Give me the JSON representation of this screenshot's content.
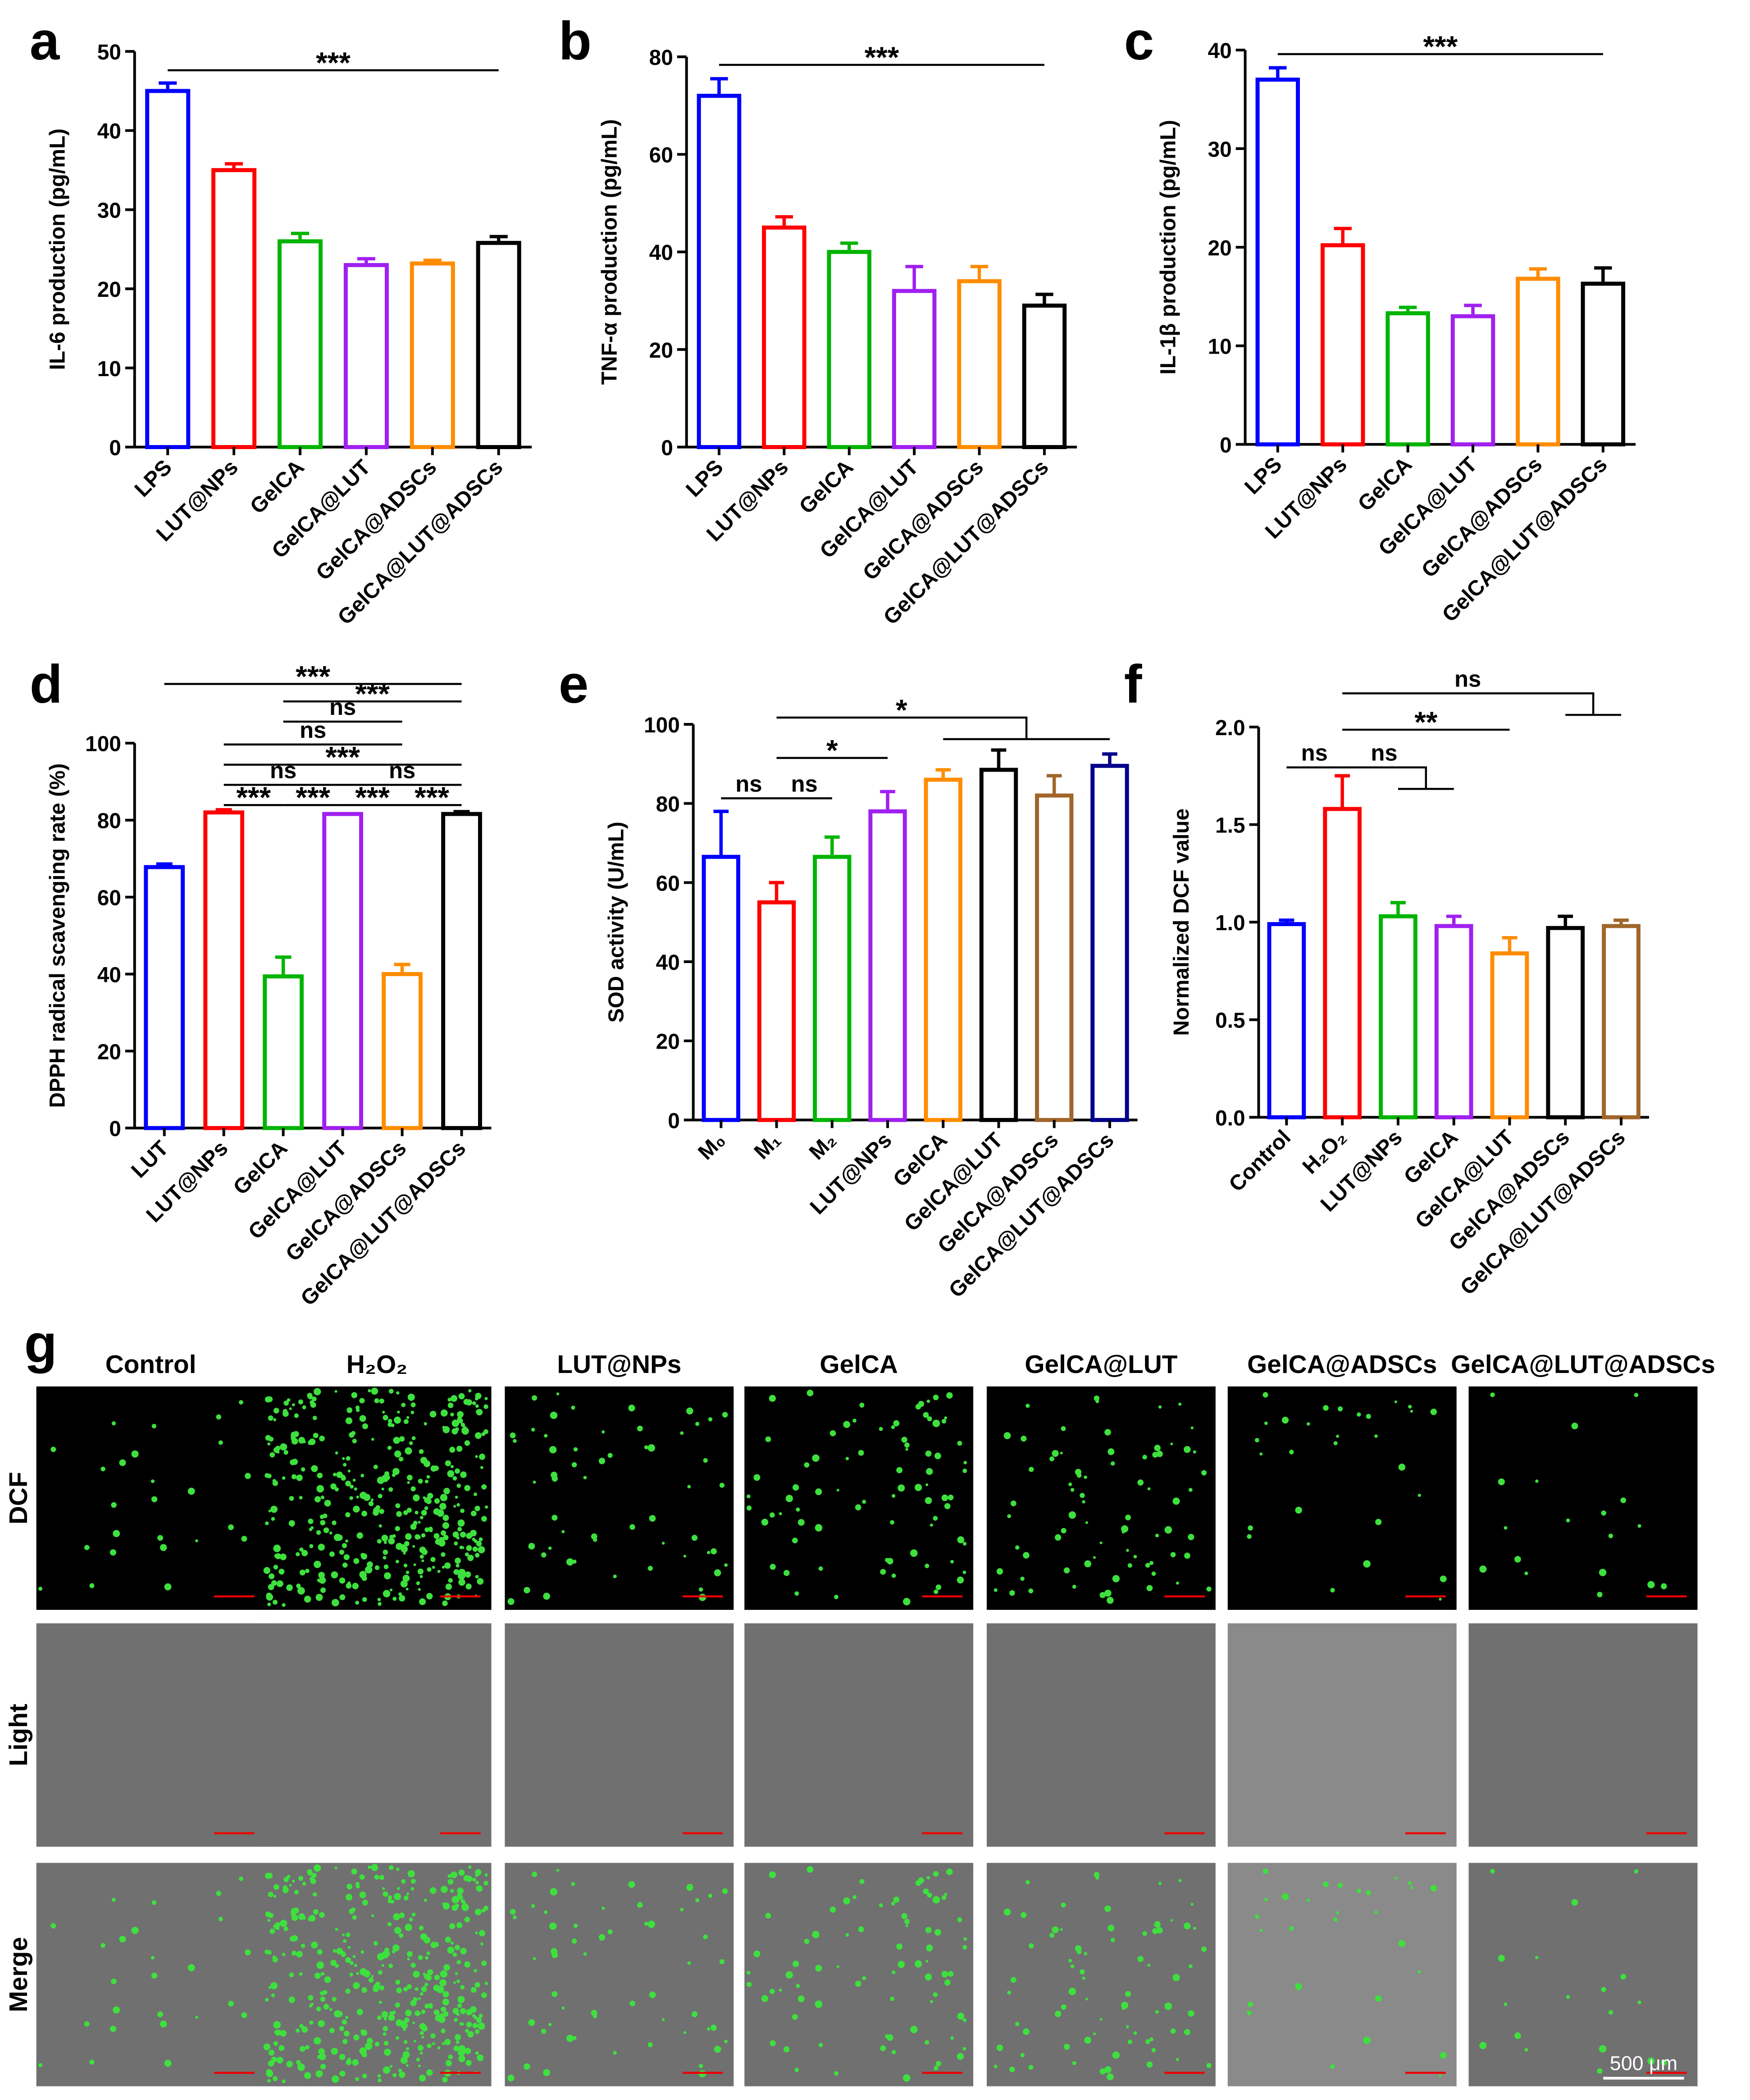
{
  "chart_data": [
    {
      "type": "bar",
      "panel": "a",
      "ylabel": "IL-6 production (pg/mL)",
      "categories": [
        "LPS",
        "LUT@NPs",
        "GelCA",
        "GelCA@LUT",
        "GelCA@ADSCs",
        "GelCA@LUT@ADSCs"
      ],
      "colors": [
        "#0000ff",
        "#ff0000",
        "#00b400",
        "#a020f0",
        "#ff8c00",
        "#000000"
      ],
      "values": [
        45,
        35,
        26,
        23,
        23.2,
        25.8
      ],
      "errors": [
        1,
        0.8,
        1,
        0.8,
        0.4,
        0.8
      ],
      "ylim": [
        0,
        50
      ],
      "yticks": [
        0,
        10,
        20,
        30,
        40,
        50
      ],
      "annotations": [
        {
          "text": "***",
          "from": 0,
          "to": 5
        }
      ]
    },
    {
      "type": "bar",
      "panel": "b",
      "ylabel": "TNF-α production (pg/mL)",
      "categories": [
        "LPS",
        "LUT@NPs",
        "GelCA",
        "GelCA@LUT",
        "GelCA@ADSCs",
        "GelCA@LUT@ADSCs"
      ],
      "colors": [
        "#0000ff",
        "#ff0000",
        "#00b400",
        "#a020f0",
        "#ff8c00",
        "#000000"
      ],
      "values": [
        72,
        45,
        40,
        32,
        34,
        29
      ],
      "errors": [
        3.5,
        2.2,
        1.8,
        5,
        3,
        2.3
      ],
      "ylim": [
        0,
        80
      ],
      "yticks": [
        0,
        20,
        40,
        60,
        80
      ],
      "annotations": [
        {
          "text": "***",
          "from": 0,
          "to": 5
        }
      ]
    },
    {
      "type": "bar",
      "panel": "c",
      "ylabel": "IL-1β production (pg/mL)",
      "categories": [
        "LPS",
        "LUT@NPs",
        "GelCA",
        "GelCA@LUT",
        "GelCA@ADSCs",
        "GelCA@LUT@ADSCs"
      ],
      "colors": [
        "#0000ff",
        "#ff0000",
        "#00b400",
        "#a020f0",
        "#ff8c00",
        "#000000"
      ],
      "values": [
        37,
        20.2,
        13.3,
        13,
        16.8,
        16.3
      ],
      "errors": [
        1.2,
        1.7,
        0.6,
        1.1,
        1,
        1.6
      ],
      "ylim": [
        0,
        40
      ],
      "yticks": [
        0,
        10,
        20,
        30,
        40
      ],
      "annotations": [
        {
          "text": "***",
          "from": 0,
          "to": 5
        }
      ]
    },
    {
      "type": "bar",
      "panel": "d",
      "ylabel": "DPPH radical scavenging rate (%)",
      "categories": [
        "LUT",
        "LUT@NPs",
        "GelCA",
        "GelCA@LUT",
        "GelCA@ADSCs",
        "GelCA@LUT@ADSCs"
      ],
      "colors": [
        "#0000ff",
        "#ff0000",
        "#00b400",
        "#a020f0",
        "#ff8c00",
        "#000000"
      ],
      "values": [
        67.8,
        82,
        39.4,
        81.6,
        40,
        81.6
      ],
      "errors": [
        0.8,
        0.7,
        5,
        0,
        2.5,
        0.6
      ],
      "ylim": [
        0,
        100
      ],
      "yticks": [
        0,
        20,
        40,
        60,
        80,
        100
      ],
      "annotations": [
        {
          "text": "***",
          "from": 0,
          "to": 5
        },
        {
          "text": "***",
          "from": 2,
          "to": 5
        },
        {
          "text": "ns",
          "from": 2,
          "to": 4
        },
        {
          "text": "ns",
          "from": 1,
          "to": 4
        },
        {
          "text": "***",
          "from": 1,
          "to": 5
        },
        {
          "text": "ns",
          "from": 1,
          "to": 3
        },
        {
          "text": "ns",
          "from": 3,
          "to": 5
        },
        {
          "text": "***",
          "from": 1,
          "to": 2
        },
        {
          "text": "***",
          "from": 2,
          "to": 3
        },
        {
          "text": "***",
          "from": 3,
          "to": 4
        },
        {
          "text": "***",
          "from": 4,
          "to": 5
        }
      ]
    },
    {
      "type": "bar",
      "panel": "e",
      "ylabel": "SOD activity (U/mL)",
      "categories": [
        "M₀",
        "M₁",
        "M₂",
        "LUT@NPs",
        "GelCA",
        "GelCA@LUT",
        "GelCA@ADSCs",
        "GelCA@LUT@ADSCs"
      ],
      "colors": [
        "#0000ff",
        "#ff0000",
        "#00b400",
        "#a020f0",
        "#ff8c00",
        "#000000",
        "#a0662a",
        "#00008b"
      ],
      "values": [
        66.5,
        55,
        66.5,
        78,
        86,
        88.5,
        82,
        89.5
      ],
      "errors": [
        11.5,
        5,
        5,
        5,
        2.5,
        5,
        5,
        3
      ],
      "ylim": [
        0,
        100
      ],
      "yticks": [
        0,
        20,
        40,
        60,
        80,
        100
      ],
      "annotations": [
        {
          "text": "ns",
          "from": 0,
          "to": 1
        },
        {
          "text": "ns",
          "from": 1,
          "to": 2
        },
        {
          "text": "*",
          "from": 1,
          "to": 3
        },
        {
          "text": "*",
          "from": 1,
          "to": [
            4,
            7
          ]
        }
      ]
    },
    {
      "type": "bar",
      "panel": "f",
      "ylabel": "Normalized DCF value",
      "categories": [
        "Control",
        "H₂O₂",
        "LUT@NPs",
        "GelCA",
        "GelCA@LUT",
        "GelCA@ADSCs",
        "GelCA@LUT@ADSCs"
      ],
      "colors": [
        "#0000ff",
        "#ff0000",
        "#00b400",
        "#a020f0",
        "#ff8c00",
        "#000000",
        "#a0662a"
      ],
      "values": [
        0.99,
        1.58,
        1.03,
        0.98,
        0.84,
        0.97,
        0.98
      ],
      "errors": [
        0.02,
        0.17,
        0.07,
        0.05,
        0.08,
        0.06,
        0.03
      ],
      "ylim": [
        0,
        2
      ],
      "yticks": [
        {
          "value": 0,
          "label": "0.0"
        },
        0.5,
        {
          "value": 1,
          "label": "1.0"
        },
        1.5,
        {
          "value": 2,
          "label": "2.0"
        }
      ],
      "annotations": [
        {
          "text": "ns",
          "from": 0,
          "to": 1
        },
        {
          "text": "ns",
          "from": 1,
          "to": [
            2,
            3
          ]
        },
        {
          "text": "**",
          "from": 1,
          "to": 4
        },
        {
          "text": "ns",
          "from": 1,
          "to": [
            5,
            6
          ]
        }
      ]
    }
  ],
  "image_panel": {
    "panel": "g",
    "columns": [
      "Control",
      "H₂O₂",
      "LUT@NPs",
      "GelCA",
      "GelCA@LUT",
      "GelCA@ADSCs",
      "GelCA@LUT@ADSCs"
    ],
    "rows": [
      "DCF",
      "Light",
      "Merge"
    ],
    "scale_bar": "500 μm"
  }
}
